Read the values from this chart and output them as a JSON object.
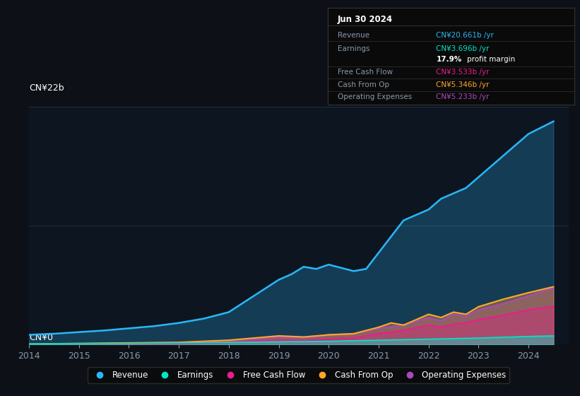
{
  "background_color": "#0d1117",
  "plot_bg_color": "#0d1520",
  "grid_color": "#1e2d3d",
  "ylabel_top": "CN¥22b",
  "ylabel_bottom": "CN¥0",
  "y_max": 22,
  "series_colors": {
    "Revenue": "#29b6f6",
    "Earnings": "#00e5c8",
    "Free Cash Flow": "#e91e8c",
    "Cash From Op": "#ffa726",
    "Operating Expenses": "#ab47bc"
  },
  "legend_items": [
    {
      "label": "Revenue",
      "color": "#29b6f6"
    },
    {
      "label": "Earnings",
      "color": "#00e5c8"
    },
    {
      "label": "Free Cash Flow",
      "color": "#e91e8c"
    },
    {
      "label": "Cash From Op",
      "color": "#ffa726"
    },
    {
      "label": "Operating Expenses",
      "color": "#ab47bc"
    }
  ],
  "info_box_title": "Jun 30 2024",
  "info_labels": [
    "Revenue",
    "Earnings",
    "",
    "Free Cash Flow",
    "Cash From Op",
    "Operating Expenses"
  ],
  "info_values": [
    "CN¥20.661b /yr",
    "CN¥3.696b /yr",
    "17.9% profit margin",
    "CN¥3.533b /yr",
    "CN¥5.346b /yr",
    "CN¥5.233b /yr"
  ],
  "info_val_colors": [
    "#29b6f6",
    "#00e5c8",
    "#ffffff",
    "#e91e8c",
    "#ffa726",
    "#ab47bc"
  ],
  "sep_color": "#333333",
  "label_color": "#8899aa",
  "tick_color": "#8899aa"
}
